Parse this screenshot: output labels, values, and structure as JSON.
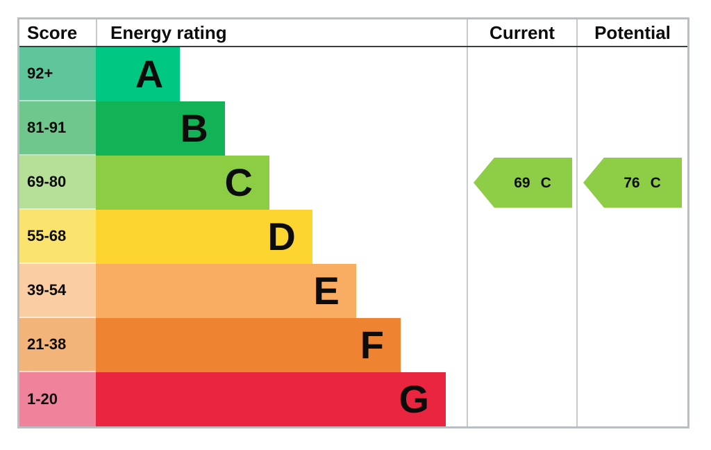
{
  "chart_data": {
    "type": "bar",
    "variant": "epc-energy-rating-chart",
    "columns": {
      "score": "Score",
      "rating": "Energy rating",
      "current": "Current",
      "potential": "Potential"
    },
    "bands": [
      {
        "letter": "A",
        "score": "92+",
        "bar_color": "#00C781",
        "score_color": "#5FC59A",
        "width_pct": 22.7
      },
      {
        "letter": "B",
        "score": "81-91",
        "bar_color": "#12B357",
        "score_color": "#70C78D",
        "width_pct": 34.8
      },
      {
        "letter": "C",
        "score": "69-80",
        "bar_color": "#8CCD44",
        "score_color": "#B6E098",
        "width_pct": 46.8
      },
      {
        "letter": "D",
        "score": "55-68",
        "bar_color": "#FDD531",
        "score_color": "#FAE46D",
        "width_pct": 58.4
      },
      {
        "letter": "E",
        "score": "39-54",
        "bar_color": "#F9AD63",
        "score_color": "#FACDA2",
        "width_pct": 70.2
      },
      {
        "letter": "F",
        "score": "21-38",
        "bar_color": "#EE8432",
        "score_color": "#F2B478",
        "width_pct": 82.2
      },
      {
        "letter": "G",
        "score": "1-20",
        "bar_color": "#EA2540",
        "score_color": "#F0839C",
        "width_pct": 94.4
      }
    ],
    "current": {
      "value": "69",
      "letter": "C",
      "band_row": 2,
      "arrow_color": "#8DCE46"
    },
    "potential": {
      "value": "76",
      "letter": "C",
      "band_row": 2,
      "arrow_color": "#8DCE46"
    }
  }
}
